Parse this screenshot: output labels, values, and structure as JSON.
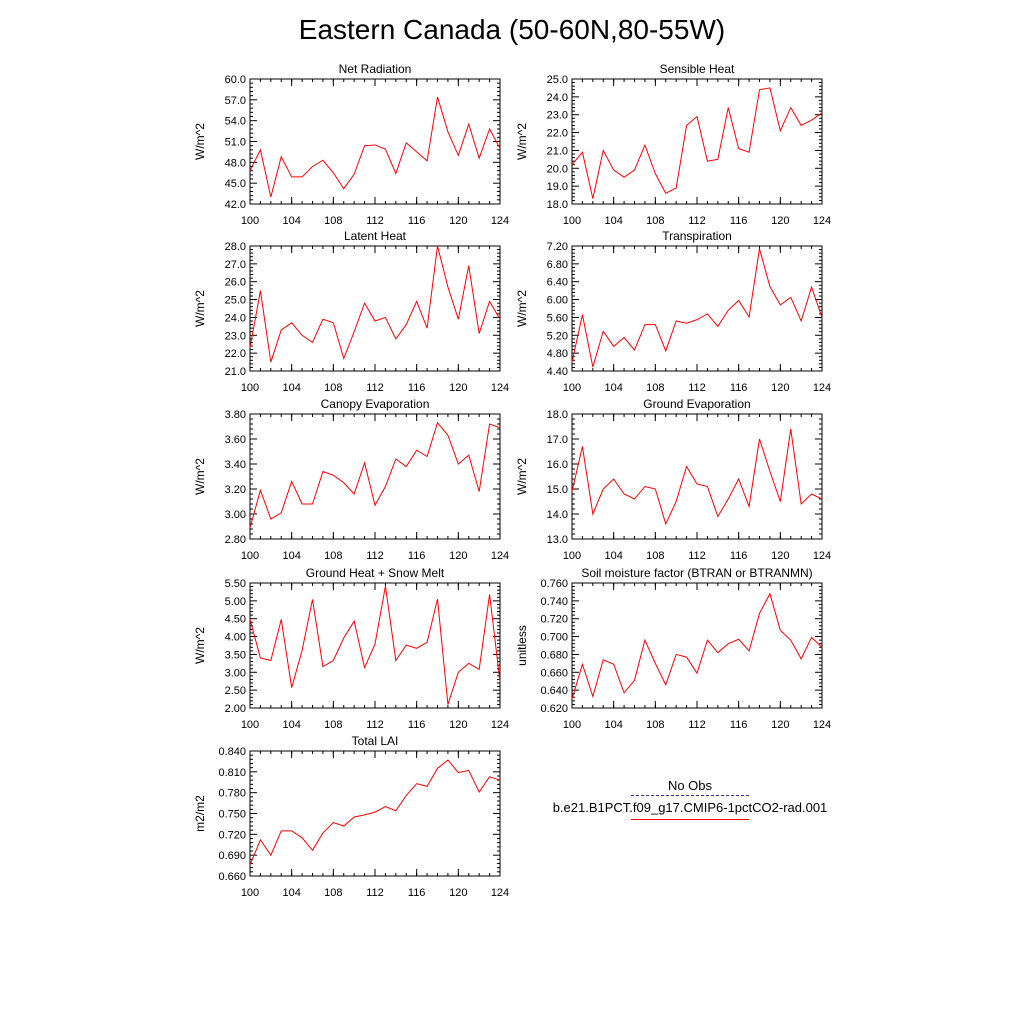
{
  "figure_title": "Eastern Canada (50-60N,80-55W)",
  "legend": {
    "obs_label": "No Obs",
    "model_label": "b.e21.B1PCT.f09_g17.CMIP6-1pctCO2-rad.001",
    "obs_color": "#3333aa",
    "model_color": "#ff0000"
  },
  "chart_data": [
    {
      "type": "line",
      "title": "Net Radiation",
      "ylabel": "W/m^2",
      "xlim": [
        100,
        124
      ],
      "ylim": [
        42.0,
        60.0
      ],
      "xticks": [
        "100",
        "104",
        "108",
        "112",
        "116",
        "120",
        "124"
      ],
      "yticks": [
        "42.0",
        "45.0",
        "48.0",
        "51.0",
        "54.0",
        "57.0",
        "60.0"
      ],
      "x": [
        100,
        101,
        102,
        103,
        104,
        105,
        106,
        107,
        108,
        109,
        110,
        111,
        112,
        113,
        114,
        115,
        116,
        117,
        118,
        119,
        120,
        121,
        122,
        123,
        124
      ],
      "series": [
        {
          "values": [
            46.8,
            49.8,
            43.0,
            48.8,
            45.9,
            45.9,
            47.4,
            48.3,
            46.5,
            44.2,
            46.3,
            50.4,
            50.5,
            49.9,
            46.4,
            50.8,
            49.5,
            48.2,
            57.4,
            52.4,
            49.0,
            53.5,
            48.6,
            52.8,
            50.0
          ]
        }
      ]
    },
    {
      "type": "line",
      "title": "Sensible Heat",
      "ylabel": "W/m^2",
      "xlim": [
        100,
        124
      ],
      "ylim": [
        18.0,
        25.0
      ],
      "xticks": [
        "100",
        "104",
        "108",
        "112",
        "116",
        "120",
        "124"
      ],
      "yticks": [
        "18.0",
        "19.0",
        "20.0",
        "21.0",
        "22.0",
        "23.0",
        "24.0",
        "25.0"
      ],
      "x": [
        100,
        101,
        102,
        103,
        104,
        105,
        106,
        107,
        108,
        109,
        110,
        111,
        112,
        113,
        114,
        115,
        116,
        117,
        118,
        119,
        120,
        121,
        122,
        123,
        124
      ],
      "series": [
        {
          "values": [
            20.2,
            20.9,
            18.3,
            21.0,
            19.9,
            19.5,
            19.9,
            21.3,
            19.7,
            18.6,
            18.9,
            22.4,
            22.9,
            20.4,
            20.5,
            23.4,
            21.1,
            20.9,
            24.4,
            24.5,
            22.1,
            23.4,
            22.4,
            22.7,
            23.1
          ]
        }
      ]
    },
    {
      "type": "line",
      "title": "Latent Heat",
      "ylabel": "W/m^2",
      "xlim": [
        100,
        124
      ],
      "ylim": [
        21.0,
        28.0
      ],
      "xticks": [
        "100",
        "104",
        "108",
        "112",
        "116",
        "120",
        "124"
      ],
      "yticks": [
        "21.0",
        "22.0",
        "23.0",
        "24.0",
        "25.0",
        "26.0",
        "27.0",
        "28.0"
      ],
      "x": [
        100,
        101,
        102,
        103,
        104,
        105,
        106,
        107,
        108,
        109,
        110,
        111,
        112,
        113,
        114,
        115,
        116,
        117,
        118,
        119,
        120,
        121,
        122,
        123,
        124
      ],
      "series": [
        {
          "values": [
            22.3,
            25.5,
            21.5,
            23.3,
            23.7,
            23.0,
            22.6,
            23.9,
            23.7,
            21.7,
            23.2,
            24.8,
            23.8,
            24.0,
            22.8,
            23.6,
            24.9,
            23.4,
            28.0,
            25.7,
            23.9,
            26.9,
            23.1,
            24.9,
            23.9
          ]
        }
      ]
    },
    {
      "type": "line",
      "title": "Transpiration",
      "ylabel": "W/m^2",
      "xlim": [
        100,
        124
      ],
      "ylim": [
        4.4,
        7.2
      ],
      "xticks": [
        "100",
        "104",
        "108",
        "112",
        "116",
        "120",
        "124"
      ],
      "yticks": [
        "4.40",
        "4.80",
        "5.20",
        "5.60",
        "6.00",
        "6.40",
        "6.80",
        "7.20"
      ],
      "x": [
        100,
        101,
        102,
        103,
        104,
        105,
        106,
        107,
        108,
        109,
        110,
        111,
        112,
        113,
        114,
        115,
        116,
        117,
        118,
        119,
        120,
        121,
        122,
        123,
        124
      ],
      "series": [
        {
          "values": [
            4.6,
            5.66,
            4.49,
            5.29,
            4.95,
            5.15,
            4.87,
            5.44,
            5.44,
            4.85,
            5.52,
            5.47,
            5.55,
            5.68,
            5.4,
            5.76,
            5.98,
            5.61,
            7.14,
            6.29,
            5.88,
            6.05,
            5.52,
            6.28,
            5.6
          ]
        }
      ]
    },
    {
      "type": "line",
      "title": "Canopy Evaporation",
      "ylabel": "W/m^2",
      "xlim": [
        100,
        124
      ],
      "ylim": [
        2.8,
        3.8
      ],
      "xticks": [
        "100",
        "104",
        "108",
        "112",
        "116",
        "120",
        "124"
      ],
      "yticks": [
        "2.80",
        "3.00",
        "3.20",
        "3.40",
        "3.60",
        "3.80"
      ],
      "x": [
        100,
        101,
        102,
        103,
        104,
        105,
        106,
        107,
        108,
        109,
        110,
        111,
        112,
        113,
        114,
        115,
        116,
        117,
        118,
        119,
        120,
        121,
        122,
        123,
        124
      ],
      "series": [
        {
          "values": [
            2.89,
            3.19,
            2.96,
            3.01,
            3.26,
            3.08,
            3.08,
            3.34,
            3.31,
            3.25,
            3.16,
            3.41,
            3.07,
            3.22,
            3.44,
            3.38,
            3.51,
            3.46,
            3.73,
            3.63,
            3.4,
            3.47,
            3.18,
            3.72,
            3.69
          ]
        }
      ]
    },
    {
      "type": "line",
      "title": "Ground Evaporation",
      "ylabel": "W/m^2",
      "xlim": [
        100,
        124
      ],
      "ylim": [
        13.0,
        18.0
      ],
      "xticks": [
        "100",
        "104",
        "108",
        "112",
        "116",
        "120",
        "124"
      ],
      "yticks": [
        "13.0",
        "14.0",
        "15.0",
        "16.0",
        "17.0",
        "18.0"
      ],
      "x": [
        100,
        101,
        102,
        103,
        104,
        105,
        106,
        107,
        108,
        109,
        110,
        111,
        112,
        113,
        114,
        115,
        116,
        117,
        118,
        119,
        120,
        121,
        122,
        123,
        124
      ],
      "series": [
        {
          "values": [
            14.9,
            16.7,
            14.0,
            15.0,
            15.4,
            14.8,
            14.6,
            15.1,
            15.0,
            13.6,
            14.5,
            15.9,
            15.2,
            15.1,
            13.9,
            14.6,
            15.4,
            14.3,
            17.0,
            15.7,
            14.5,
            17.4,
            14.4,
            14.8,
            14.6
          ]
        }
      ]
    },
    {
      "type": "line",
      "title": "Ground Heat + Snow Melt",
      "ylabel": "W/m^2",
      "xlim": [
        100,
        124
      ],
      "ylim": [
        2.0,
        5.5
      ],
      "xticks": [
        "100",
        "104",
        "108",
        "112",
        "116",
        "120",
        "124"
      ],
      "yticks": [
        "2.00",
        "2.50",
        "3.00",
        "3.50",
        "4.00",
        "4.50",
        "5.00",
        "5.50"
      ],
      "x": [
        100,
        101,
        102,
        103,
        104,
        105,
        106,
        107,
        108,
        109,
        110,
        111,
        112,
        113,
        114,
        115,
        116,
        117,
        118,
        119,
        120,
        121,
        122,
        123,
        124
      ],
      "series": [
        {
          "values": [
            4.48,
            3.4,
            3.33,
            4.48,
            2.57,
            3.61,
            5.04,
            3.16,
            3.33,
            3.96,
            4.43,
            3.13,
            3.79,
            5.41,
            3.33,
            3.76,
            3.67,
            3.84,
            5.05,
            2.1,
            3.0,
            3.25,
            3.08,
            5.18,
            2.73
          ]
        }
      ]
    },
    {
      "type": "line",
      "title": "Soil moisture factor (BTRAN or BTRANMN)",
      "ylabel": "unitless",
      "xlim": [
        100,
        124
      ],
      "ylim": [
        0.62,
        0.76
      ],
      "xticks": [
        "100",
        "104",
        "108",
        "112",
        "116",
        "120",
        "124"
      ],
      "yticks": [
        "0.620",
        "0.640",
        "0.660",
        "0.680",
        "0.700",
        "0.720",
        "0.740",
        "0.760"
      ],
      "x": [
        100,
        101,
        102,
        103,
        104,
        105,
        106,
        107,
        108,
        109,
        110,
        111,
        112,
        113,
        114,
        115,
        116,
        117,
        118,
        119,
        120,
        121,
        122,
        123,
        124
      ],
      "series": [
        {
          "values": [
            0.63,
            0.669,
            0.633,
            0.674,
            0.669,
            0.637,
            0.651,
            0.696,
            0.67,
            0.646,
            0.68,
            0.677,
            0.659,
            0.696,
            0.682,
            0.692,
            0.697,
            0.684,
            0.726,
            0.748,
            0.707,
            0.696,
            0.675,
            0.699,
            0.688
          ]
        }
      ]
    },
    {
      "type": "line",
      "title": "Total LAI",
      "ylabel": "m2/m2",
      "xlim": [
        100,
        124
      ],
      "ylim": [
        0.66,
        0.84
      ],
      "xticks": [
        "100",
        "104",
        "108",
        "112",
        "116",
        "120",
        "124"
      ],
      "yticks": [
        "0.660",
        "0.690",
        "0.720",
        "0.750",
        "0.780",
        "0.810",
        "0.840"
      ],
      "x": [
        100,
        101,
        102,
        103,
        104,
        105,
        106,
        107,
        108,
        109,
        110,
        111,
        112,
        113,
        114,
        115,
        116,
        117,
        118,
        119,
        120,
        121,
        122,
        123,
        124
      ],
      "series": [
        {
          "values": [
            0.676,
            0.712,
            0.69,
            0.725,
            0.725,
            0.715,
            0.697,
            0.722,
            0.737,
            0.732,
            0.745,
            0.748,
            0.752,
            0.76,
            0.754,
            0.776,
            0.793,
            0.789,
            0.815,
            0.827,
            0.809,
            0.812,
            0.781,
            0.803,
            0.798
          ]
        }
      ]
    }
  ]
}
